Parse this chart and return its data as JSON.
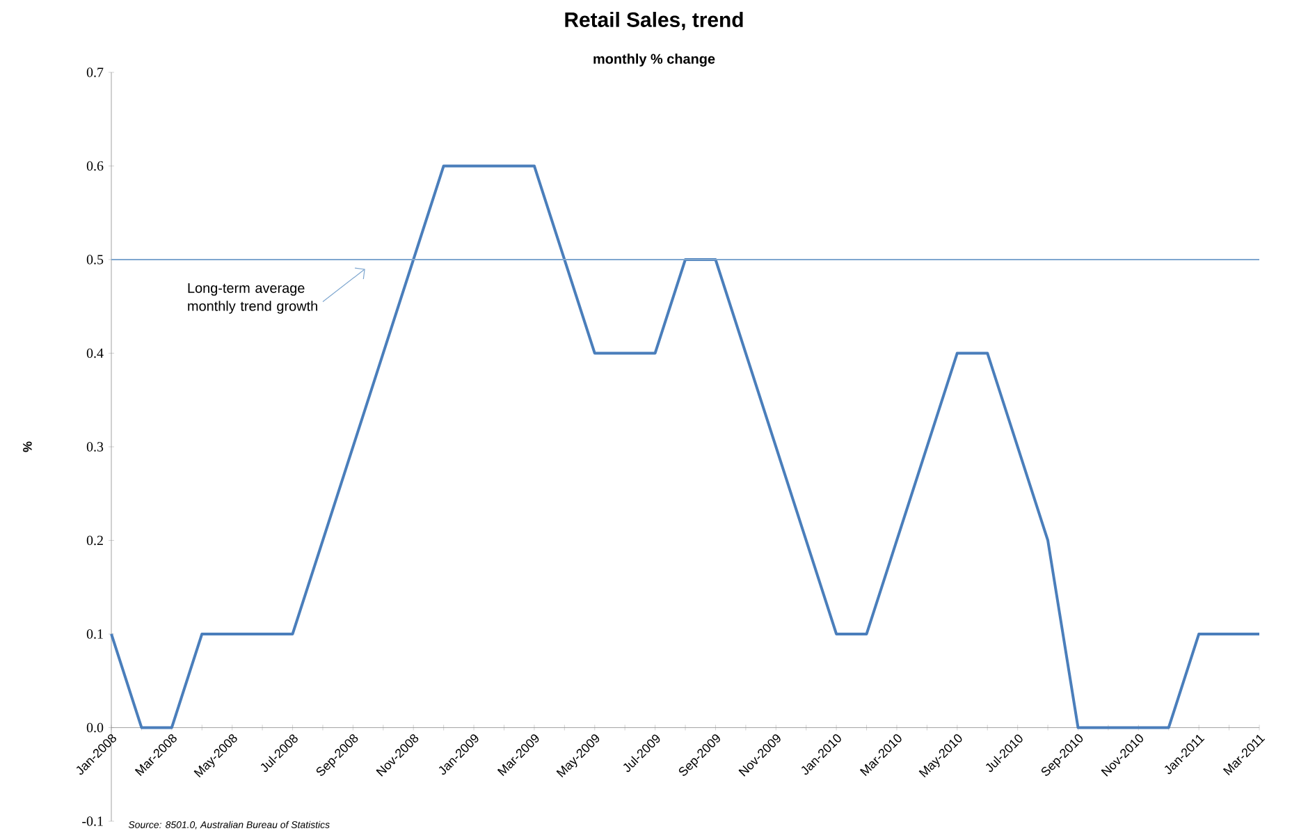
{
  "chart_data": {
    "type": "line",
    "title": "Retail Sales, trend",
    "subtitle": "monthly % change",
    "ylabel": "%",
    "categories": [
      "Jan-2008",
      null,
      "Mar-2008",
      null,
      "May-2008",
      null,
      "Jul-2008",
      null,
      "Sep-2008",
      null,
      "Nov-2008",
      null,
      "Jan-2009",
      null,
      "Mar-2009",
      null,
      "May-2009",
      null,
      "Jul-2009",
      null,
      "Sep-2009",
      null,
      "Nov-2009",
      null,
      "Jan-2010",
      null,
      "Mar-2010",
      null,
      "May-2010",
      null,
      "Jul-2010",
      null,
      "Sep-2010",
      null,
      "Nov-2010",
      null,
      "Jan-2011",
      null,
      "Mar-2011"
    ],
    "series": [
      {
        "color": "#4a7ebb",
        "values": [
          0.1,
          0.0,
          0.0,
          0.1,
          0.1,
          0.1,
          0.1,
          0.2,
          0.3,
          0.4,
          0.5,
          0.6,
          0.6,
          0.6,
          0.6,
          0.5,
          0.4,
          0.4,
          0.4,
          0.5,
          0.5,
          0.4,
          0.3,
          0.2,
          0.1,
          0.1,
          0.2,
          0.3,
          0.4,
          0.4,
          0.3,
          0.2,
          0.0,
          0.0,
          0.0,
          0.0,
          0.1,
          0.1,
          0.1
        ]
      }
    ],
    "ylim": [
      -0.1,
      0.7
    ],
    "yticks": [
      -0.1,
      {
        "value": 0,
        "label": "0.0"
      },
      0.1,
      0.2,
      0.3,
      0.4,
      0.5,
      0.6,
      0.7
    ],
    "ref_lines": [
      {
        "axis": "y",
        "value": 0.5,
        "label": "Long-term average monthly trend growth",
        "color": "#7ea6cf"
      }
    ],
    "annotations": [
      "Source: 8501.0, Australian Bureau of Statistics"
    ],
    "grid": false,
    "marker": "none",
    "line_style": "solid"
  }
}
